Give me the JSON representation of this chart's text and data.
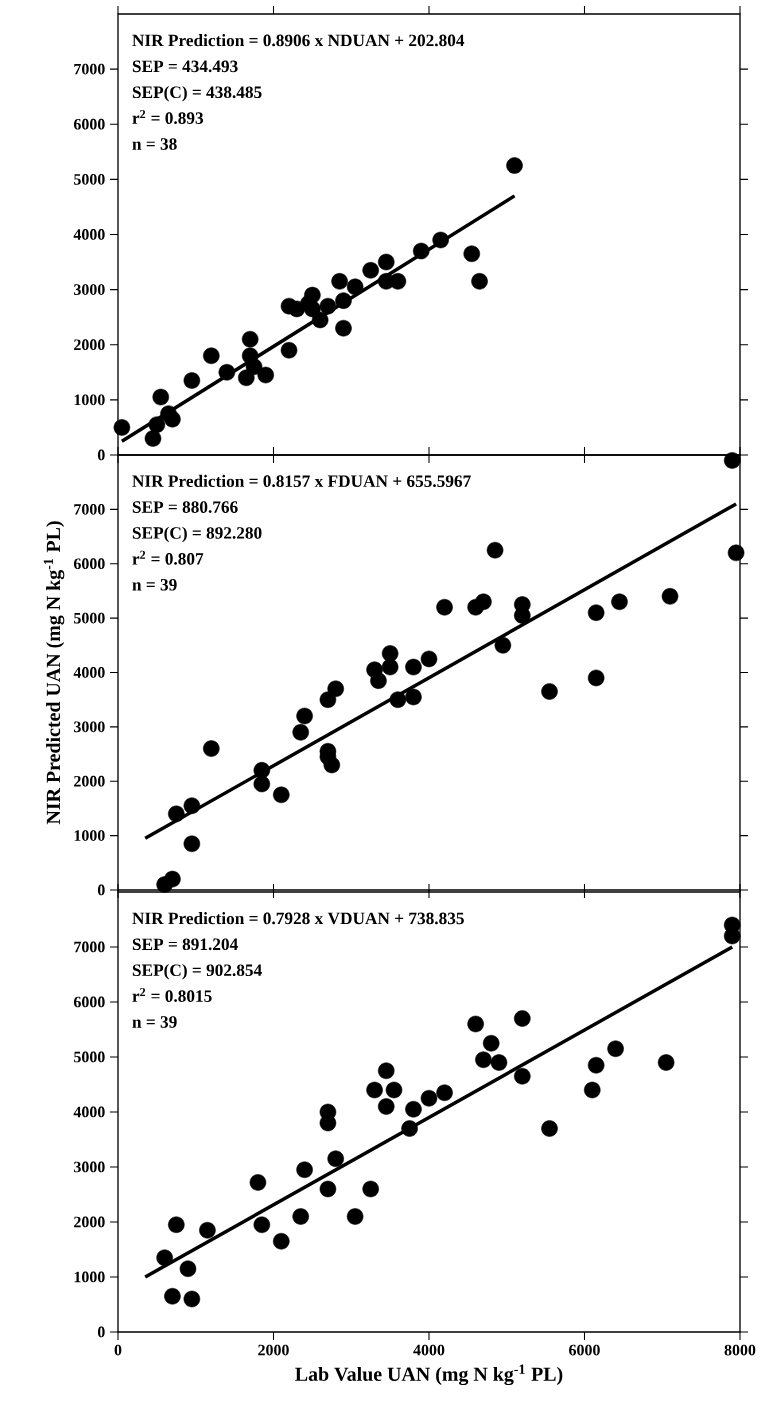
{
  "chart_data": [
    {
      "type": "scatter",
      "xlim": [
        0,
        8000
      ],
      "ylim": [
        0,
        8000
      ],
      "xticks": [
        0,
        2000,
        4000,
        6000,
        8000
      ],
      "yticks": [
        0,
        1000,
        2000,
        3000,
        4000,
        5000,
        6000,
        7000
      ],
      "tick_labels": "y",
      "annotations": [
        "NIR Prediction = 0.8906 x NDUAN + 202.804",
        "SEP = 434.493",
        "SEP(C) = 438.485",
        "r$^{2}$ = 0.893",
        "n = 38"
      ],
      "series": [
        {
          "marker": "circle",
          "color": "#000000",
          "x": [
            50,
            500,
            450,
            550,
            650,
            700,
            950,
            1200,
            1400,
            1700,
            1700,
            1750,
            1650,
            1900,
            2200,
            2200,
            2300,
            2500,
            2450,
            2500,
            2600,
            2700,
            2850,
            2900,
            2900,
            3050,
            3250,
            3450,
            3450,
            3600,
            3900,
            4150,
            4550,
            4650,
            5100
          ],
          "values": [
            500,
            550,
            300,
            1050,
            750,
            650,
            1350,
            1800,
            1500,
            2100,
            1800,
            1600,
            1400,
            1450,
            1900,
            2700,
            2650,
            2900,
            2750,
            2650,
            2450,
            2700,
            3150,
            2800,
            2300,
            3050,
            3350,
            3500,
            3150,
            3150,
            3700,
            3900,
            3650,
            3150,
            5250
          ]
        },
        {
          "type": "line",
          "color": "#000000",
          "x": [
            50,
            5100
          ],
          "values": [
            250,
            4700
          ]
        }
      ]
    },
    {
      "type": "scatter",
      "ylabel": "NIR Predicted UAN (mg N kg$^{-1}$ PL)",
      "xlim": [
        0,
        8000
      ],
      "ylim": [
        0,
        8000
      ],
      "xticks": [
        0,
        2000,
        4000,
        6000,
        8000
      ],
      "yticks": [
        0,
        1000,
        2000,
        3000,
        4000,
        5000,
        6000,
        7000
      ],
      "tick_labels": "y",
      "annotations": [
        "NIR Prediction = 0.8157 x FDUAN + 655.5967",
        "SEP = 880.766",
        "SEP(C) = 892.280",
        "r$^{2}$ = 0.807",
        "n = 39"
      ],
      "series": [
        {
          "marker": "circle",
          "color": "#000000",
          "x": [
            600,
            700,
            950,
            750,
            950,
            1200,
            1850,
            1850,
            2100,
            2350,
            2400,
            2700,
            2700,
            2750,
            2700,
            2800,
            3300,
            3350,
            3500,
            3500,
            3600,
            3800,
            3800,
            4000,
            4200,
            4600,
            4700,
            4850,
            4950,
            5200,
            5200,
            5550,
            6150,
            6150,
            6450,
            7100,
            7950,
            7900
          ],
          "values": [
            100,
            200,
            850,
            1400,
            1550,
            2600,
            2200,
            1950,
            1750,
            2900,
            3200,
            2550,
            2450,
            2300,
            3500,
            3700,
            4050,
            3850,
            4350,
            4100,
            3500,
            4100,
            3550,
            4250,
            5200,
            5200,
            5300,
            6250,
            4500,
            5250,
            5050,
            3650,
            3900,
            5100,
            5300,
            5400,
            6200,
            7900
          ]
        },
        {
          "type": "line",
          "color": "#000000",
          "x": [
            350,
            7950
          ],
          "values": [
            950,
            7100
          ]
        }
      ]
    },
    {
      "type": "scatter",
      "xlabel": "Lab Value UAN (mg N kg$^{-1}$ PL)",
      "xlim": [
        0,
        8000
      ],
      "ylim": [
        0,
        8000
      ],
      "xticks": [
        0,
        2000,
        4000,
        6000,
        8000
      ],
      "yticks": [
        0,
        1000,
        2000,
        3000,
        4000,
        5000,
        6000,
        7000
      ],
      "annotations": [
        "NIR Prediction = 0.7928 x VDUAN + 738.835",
        "SEP = 891.204",
        "SEP(C) = 902.854",
        "r$^{2}$ = 0.8015",
        "n = 39"
      ],
      "series": [
        {
          "marker": "circle",
          "color": "#000000",
          "x": [
            600,
            700,
            750,
            900,
            950,
            1150,
            1800,
            1850,
            2100,
            2350,
            2400,
            2700,
            2700,
            2700,
            2800,
            3050,
            3250,
            3300,
            3450,
            3450,
            3550,
            3750,
            3800,
            4000,
            4200,
            4600,
            4700,
            4800,
            4900,
            5200,
            5200,
            5550,
            6100,
            6150,
            6400,
            7050,
            7900,
            7900
          ],
          "values": [
            1350,
            650,
            1950,
            1150,
            600,
            1850,
            2720,
            1950,
            1650,
            2100,
            2950,
            4000,
            3800,
            2600,
            3150,
            2100,
            2600,
            4400,
            4750,
            4100,
            4400,
            3700,
            4050,
            4250,
            4350,
            5600,
            4950,
            5250,
            4900,
            5700,
            4650,
            3700,
            4400,
            4850,
            5150,
            4900,
            7400,
            7200
          ]
        },
        {
          "type": "line",
          "color": "#000000",
          "x": [
            350,
            7900
          ],
          "values": [
            1000,
            7000
          ]
        }
      ]
    }
  ]
}
